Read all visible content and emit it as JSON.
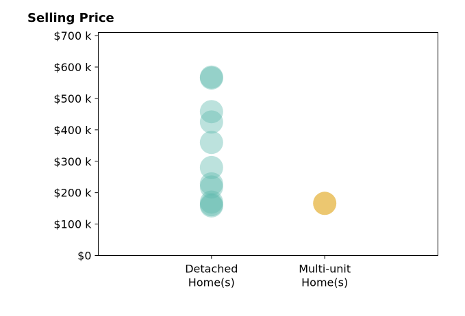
{
  "chart_data": {
    "type": "scatter",
    "title": "Selling Price",
    "xlabel": "",
    "ylabel": "",
    "categories": [
      "Detached\nHome(s)",
      "Multi-unit\nHome(s)"
    ],
    "ylim": [
      0,
      710000
    ],
    "xlim": [
      -1,
      2
    ],
    "y_ticks": [
      0,
      100000,
      200000,
      300000,
      400000,
      500000,
      600000,
      700000
    ],
    "y_tick_labels": [
      "$0",
      "$100 k",
      "$200 k",
      "$300 k",
      "$400 k",
      "$500 k",
      "$600 k",
      "$700 k"
    ],
    "grid": false,
    "legend": "none",
    "series": [
      {
        "category": "Detached\nHome(s)",
        "color": "#5fb9ad",
        "values": [
          568000,
          565000,
          458000,
          425000,
          360000,
          280000,
          228000,
          218000,
          170000,
          162000,
          158000
        ]
      },
      {
        "category": "Multi-unit\nHome(s)",
        "color": "#e7b94c",
        "values": [
          166000
        ]
      }
    ]
  }
}
